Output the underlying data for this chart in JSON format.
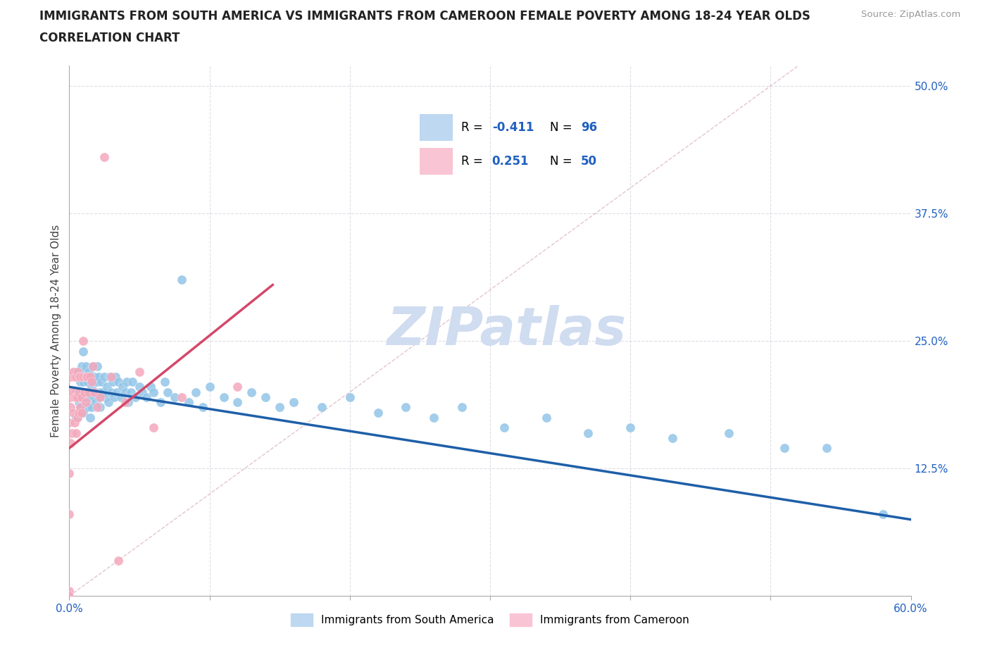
{
  "title_line1": "IMMIGRANTS FROM SOUTH AMERICA VS IMMIGRANTS FROM CAMEROON FEMALE POVERTY AMONG 18-24 YEAR OLDS",
  "title_line2": "CORRELATION CHART",
  "ylabel": "Female Poverty Among 18-24 Year Olds",
  "source": "Source: ZipAtlas.com",
  "xlim": [
    0.0,
    0.6
  ],
  "ylim": [
    0.0,
    0.52
  ],
  "R_south_america": -0.411,
  "N_south_america": 96,
  "R_cameroon": 0.251,
  "N_cameroon": 50,
  "color_south_america": "#92C5E8",
  "color_cameroon": "#F4A8BC",
  "trendline_south_america": "#1E5FA8",
  "trendline_cameroon": "#D4486A",
  "trendline_diagonal_color": "#D8AABB",
  "watermark_color": "#D0DCF0",
  "legend_box_color_sa": "#BDD8F0",
  "legend_box_color_cam": "#F9C4D4",
  "sa_trend_x0": 0.0,
  "sa_trend_y0": 0.205,
  "sa_trend_x1": 0.6,
  "sa_trend_y1": 0.075,
  "cam_trend_x0": 0.0,
  "cam_trend_y0": 0.145,
  "cam_trend_x1": 0.145,
  "cam_trend_y1": 0.305,
  "south_america_x": [
    0.005,
    0.005,
    0.005,
    0.007,
    0.007,
    0.008,
    0.008,
    0.008,
    0.009,
    0.009,
    0.01,
    0.01,
    0.01,
    0.01,
    0.01,
    0.011,
    0.011,
    0.012,
    0.012,
    0.013,
    0.013,
    0.014,
    0.014,
    0.015,
    0.015,
    0.015,
    0.016,
    0.016,
    0.017,
    0.017,
    0.018,
    0.018,
    0.019,
    0.019,
    0.02,
    0.02,
    0.021,
    0.021,
    0.022,
    0.022,
    0.023,
    0.024,
    0.025,
    0.026,
    0.027,
    0.028,
    0.029,
    0.03,
    0.031,
    0.032,
    0.033,
    0.034,
    0.035,
    0.037,
    0.038,
    0.04,
    0.041,
    0.042,
    0.044,
    0.045,
    0.047,
    0.05,
    0.052,
    0.055,
    0.058,
    0.06,
    0.065,
    0.068,
    0.07,
    0.075,
    0.08,
    0.085,
    0.09,
    0.095,
    0.1,
    0.11,
    0.12,
    0.13,
    0.14,
    0.15,
    0.16,
    0.18,
    0.2,
    0.22,
    0.24,
    0.26,
    0.28,
    0.31,
    0.34,
    0.37,
    0.4,
    0.43,
    0.47,
    0.51,
    0.54,
    0.58
  ],
  "south_america_y": [
    0.2,
    0.22,
    0.175,
    0.19,
    0.215,
    0.185,
    0.21,
    0.195,
    0.18,
    0.225,
    0.21,
    0.195,
    0.22,
    0.18,
    0.24,
    0.2,
    0.215,
    0.195,
    0.225,
    0.185,
    0.21,
    0.2,
    0.22,
    0.195,
    0.215,
    0.175,
    0.205,
    0.185,
    0.21,
    0.225,
    0.195,
    0.215,
    0.2,
    0.19,
    0.21,
    0.225,
    0.195,
    0.215,
    0.2,
    0.185,
    0.21,
    0.2,
    0.215,
    0.195,
    0.205,
    0.19,
    0.215,
    0.2,
    0.21,
    0.195,
    0.215,
    0.2,
    0.21,
    0.195,
    0.205,
    0.2,
    0.21,
    0.19,
    0.2,
    0.21,
    0.195,
    0.205,
    0.2,
    0.195,
    0.205,
    0.2,
    0.19,
    0.21,
    0.2,
    0.195,
    0.31,
    0.19,
    0.2,
    0.185,
    0.205,
    0.195,
    0.19,
    0.2,
    0.195,
    0.185,
    0.19,
    0.185,
    0.195,
    0.18,
    0.185,
    0.175,
    0.185,
    0.165,
    0.175,
    0.16,
    0.165,
    0.155,
    0.16,
    0.145,
    0.145,
    0.08
  ],
  "cameroon_x": [
    0.0,
    0.0,
    0.0,
    0.0,
    0.0,
    0.001,
    0.001,
    0.001,
    0.001,
    0.002,
    0.002,
    0.003,
    0.003,
    0.004,
    0.004,
    0.004,
    0.005,
    0.005,
    0.005,
    0.006,
    0.006,
    0.006,
    0.007,
    0.007,
    0.007,
    0.008,
    0.008,
    0.009,
    0.009,
    0.01,
    0.01,
    0.011,
    0.012,
    0.012,
    0.013,
    0.014,
    0.015,
    0.016,
    0.017,
    0.018,
    0.02,
    0.022,
    0.025,
    0.03,
    0.035,
    0.04,
    0.05,
    0.06,
    0.08,
    0.12
  ],
  "cameroon_y": [
    0.005,
    0.0,
    0.08,
    0.12,
    0.17,
    0.15,
    0.185,
    0.195,
    0.215,
    0.16,
    0.2,
    0.18,
    0.22,
    0.17,
    0.195,
    0.215,
    0.16,
    0.195,
    0.215,
    0.175,
    0.195,
    0.22,
    0.2,
    0.18,
    0.215,
    0.185,
    0.215,
    0.195,
    0.18,
    0.215,
    0.25,
    0.2,
    0.215,
    0.19,
    0.215,
    0.2,
    0.215,
    0.21,
    0.225,
    0.2,
    0.185,
    0.195,
    0.43,
    0.215,
    0.035,
    0.19,
    0.22,
    0.165,
    0.195,
    0.205
  ]
}
